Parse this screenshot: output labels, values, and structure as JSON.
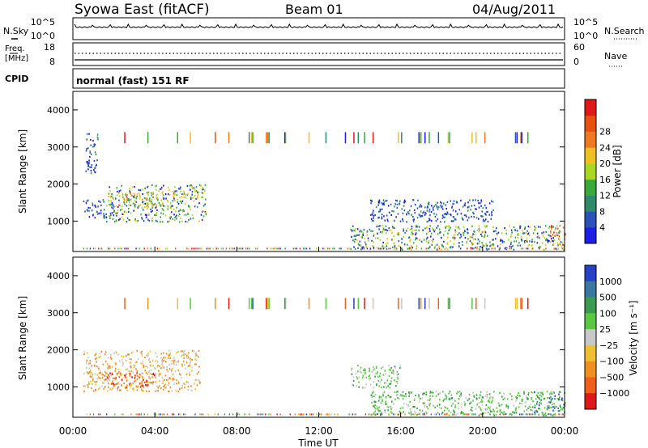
{
  "header": {
    "title": "Syowa East (fitACF)",
    "beam": "Beam 01",
    "date": "04/Aug/2011"
  },
  "strip_panels": {
    "noise": {
      "left_label": "N.Sky",
      "right_label": "N.Search",
      "left_ticks": [
        "10^5",
        "10^0"
      ],
      "right_ticks": [
        "10^5",
        "10^0"
      ]
    },
    "freq": {
      "left_label_1": "Freq.",
      "left_label_2": "[MHz]",
      "right_label": "Nave",
      "left_ticks": [
        "18",
        "8"
      ],
      "right_ticks": [
        "60",
        "0"
      ]
    },
    "cpid": {
      "label": "CPID",
      "text": "normal (fast) 151 RF"
    }
  },
  "xaxis": {
    "label": "Time UT",
    "ticks": [
      "00:00",
      "04:00",
      "08:00",
      "12:00",
      "16:00",
      "20:00",
      "00:00"
    ]
  },
  "colors": {
    "power_scale": [
      "#1e1ee6",
      "#2a52b8",
      "#2e8a6a",
      "#3aa83a",
      "#a8d820",
      "#f0c020",
      "#f07820",
      "#e85010",
      "#e01818"
    ],
    "velocity_scale": [
      "#2840c8",
      "#3a78a0",
      "#3a9a50",
      "#5ac840",
      "#c8c8c8",
      "#f0c030",
      "#f09020",
      "#f06018",
      "#e01818"
    ]
  },
  "chart_data": [
    {
      "type": "heatmap",
      "name": "power",
      "ylabel": "Slant Range [km]",
      "xlabel": "Time UT",
      "ylim": [
        180,
        4500
      ],
      "xlim": [
        0,
        24
      ],
      "yticks": [
        "1000",
        "2000",
        "3000",
        "4000"
      ],
      "x_ticks": [
        "00:00",
        "04:00",
        "08:00",
        "12:00",
        "16:00",
        "20:00",
        "00:00"
      ],
      "colorbar": {
        "label": "Power [dB]",
        "ticks": [
          "4",
          "8",
          "12",
          "16",
          "20",
          "24",
          "28"
        ],
        "range": [
          0,
          30
        ]
      },
      "regions": [
        {
          "t": [
            0.5,
            1.6
          ],
          "r": [
            1100,
            1600
          ],
          "level": "low"
        },
        {
          "t": [
            1.6,
            6.5
          ],
          "r": [
            1000,
            2000
          ],
          "level": "mixed"
        },
        {
          "t": [
            2.2,
            4.2
          ],
          "r": [
            1400,
            1800
          ],
          "level": "medium"
        },
        {
          "t": [
            0.6,
            1.2
          ],
          "r": [
            2300,
            3400
          ],
          "level": "low"
        },
        {
          "t": [
            13.5,
            23.8
          ],
          "r": [
            250,
            900
          ],
          "level": "mixed"
        },
        {
          "t": [
            14.5,
            20.5
          ],
          "r": [
            1000,
            1600
          ],
          "level": "low"
        },
        {
          "t": [
            23.2,
            24.0
          ],
          "r": [
            250,
            900
          ],
          "level": "high"
        }
      ]
    },
    {
      "type": "heatmap",
      "name": "velocity",
      "ylabel": "Slant Range [km]",
      "xlabel": "Time UT",
      "ylim": [
        180,
        4500
      ],
      "xlim": [
        0,
        24
      ],
      "yticks": [
        "1000",
        "2000",
        "3000",
        "4000"
      ],
      "x_ticks": [
        "00:00",
        "04:00",
        "08:00",
        "12:00",
        "16:00",
        "20:00",
        "00:00"
      ],
      "colorbar": {
        "label": "Velocity [m s⁻¹]",
        "ticks": [
          "1000",
          "500",
          "100",
          "25",
          "−25",
          "−100",
          "−500",
          "−1000"
        ],
        "range": [
          -1000,
          1000
        ]
      },
      "regions": [
        {
          "t": [
            0.5,
            6.2
          ],
          "r": [
            900,
            2000
          ],
          "level": "negative"
        },
        {
          "t": [
            1.5,
            4.0
          ],
          "r": [
            1000,
            1400
          ],
          "level": "strong-negative"
        },
        {
          "t": [
            13.5,
            16.0
          ],
          "r": [
            1000,
            1600
          ],
          "level": "positive"
        },
        {
          "t": [
            14.5,
            23.8
          ],
          "r": [
            250,
            900
          ],
          "level": "positive"
        },
        {
          "t": [
            22.5,
            24.0
          ],
          "r": [
            250,
            900
          ],
          "level": "strong-positive"
        }
      ]
    }
  ]
}
